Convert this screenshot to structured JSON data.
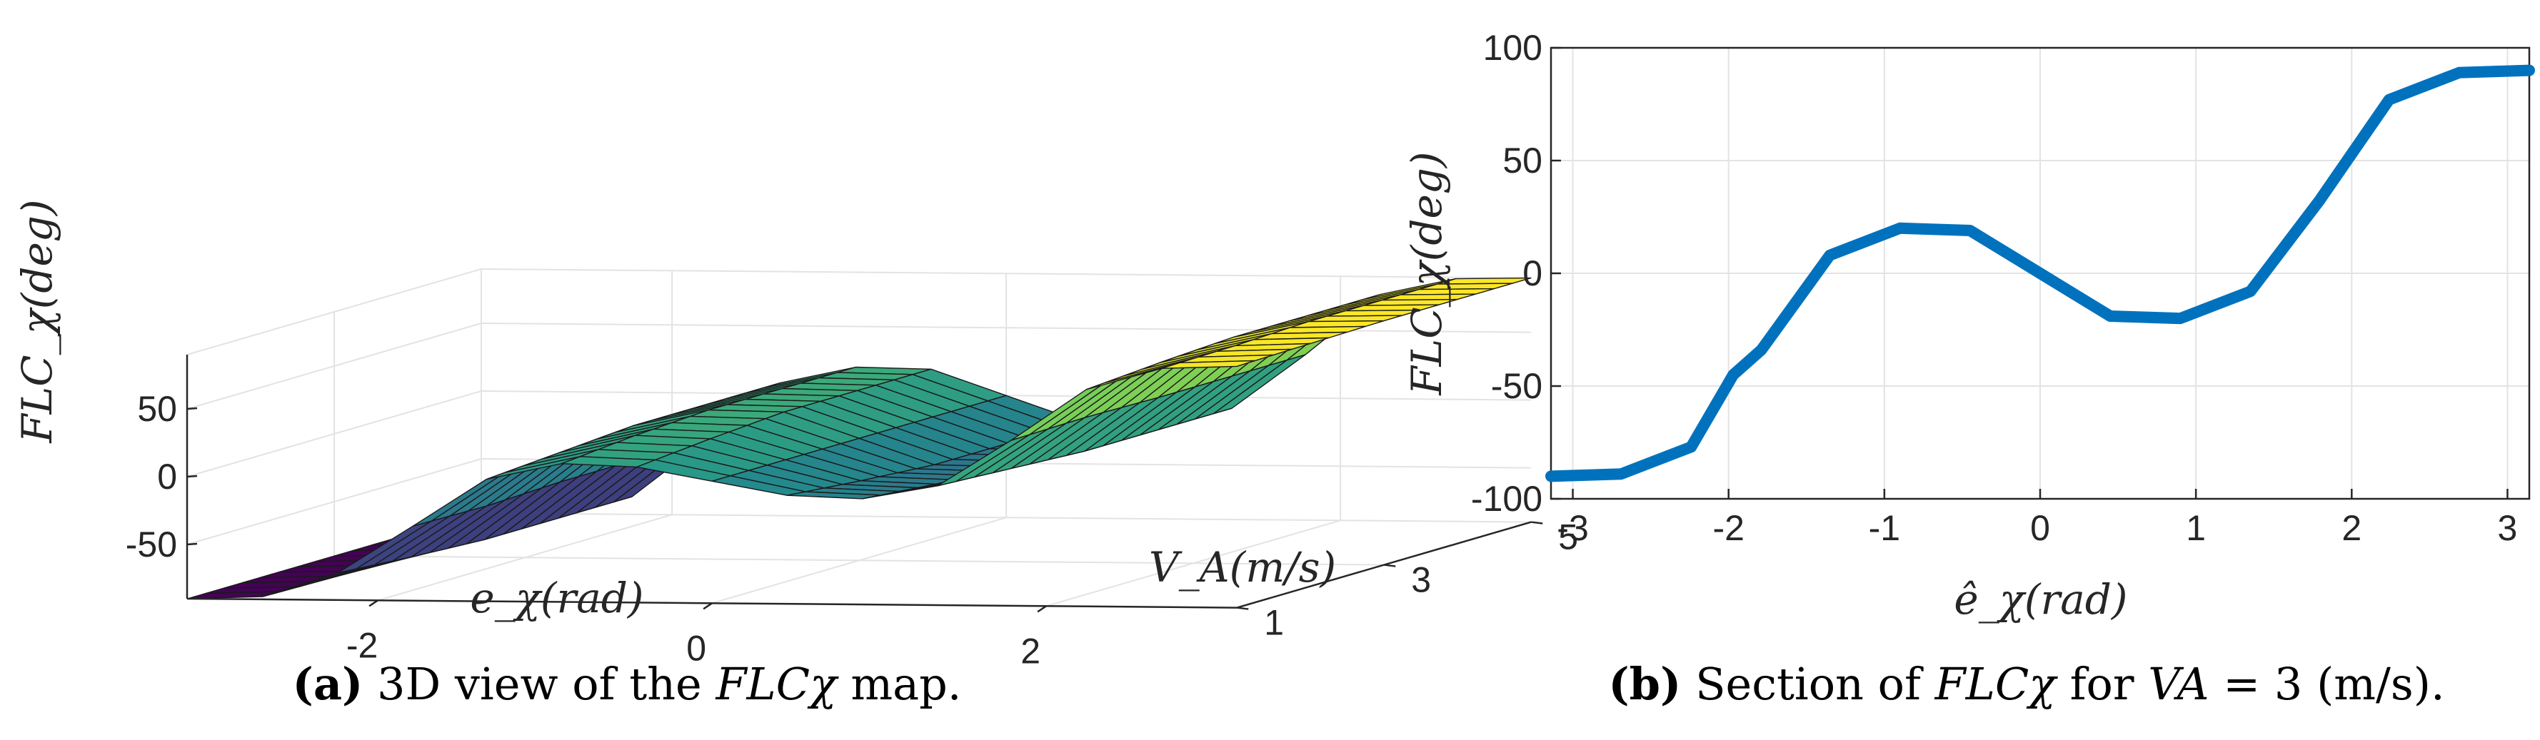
{
  "chart_data": [
    {
      "type": "surface",
      "panel": "a",
      "xlabel": "e_χ(rad)",
      "ylabel": "V_A(m/s)",
      "zlabel": "FLC_χ(deg)",
      "x_ticks": [
        "-2",
        "0",
        "2"
      ],
      "y_ticks": [
        "1",
        "3",
        "5"
      ],
      "z_ticks": [
        "50",
        "0",
        "-50"
      ],
      "x_range": [
        -3.14,
        3.14
      ],
      "y_range": [
        1,
        5
      ],
      "z_range": [
        -90,
        90
      ],
      "e_values": [
        -3.14,
        -2.69,
        -2.24,
        -1.79,
        -1.35,
        -0.9,
        -0.45,
        0,
        0.45,
        0.9,
        1.35,
        1.79,
        2.24,
        2.69,
        3.14
      ],
      "va_values": [
        1,
        2,
        3,
        4,
        5
      ],
      "z_values": [
        [
          -90,
          -88,
          -70,
          -35,
          0,
          12,
          10,
          0,
          -10,
          -12,
          -2,
          32,
          70,
          86,
          88
        ],
        [
          -90,
          -89,
          -74,
          -36,
          4,
          17,
          15,
          0,
          -15,
          -17,
          -5,
          33,
          74,
          87,
          89
        ],
        [
          -90,
          -89,
          -77,
          -34,
          8,
          20,
          19,
          0,
          -19,
          -20,
          -8,
          32,
          77,
          89,
          90
        ],
        [
          -90,
          -89,
          -77,
          -34,
          8,
          20,
          19,
          0,
          -19,
          -20,
          -8,
          32,
          77,
          89,
          90
        ],
        [
          -90,
          -89,
          -77,
          -34,
          8,
          20,
          19,
          0,
          -19,
          -20,
          -8,
          32,
          77,
          89,
          90
        ]
      ],
      "colormap": [
        "#440154",
        "#3b528b",
        "#21918c",
        "#5ec962",
        "#fde725"
      ]
    },
    {
      "type": "line",
      "panel": "b",
      "xlabel": "ê_χ(rad)",
      "ylabel": "FLC_χ(deg)",
      "x_ticks": [
        "-3",
        "-2",
        "-1",
        "0",
        "1",
        "2",
        "3"
      ],
      "y_ticks": [
        "100",
        "50",
        "0",
        "-50",
        "-100"
      ],
      "xlim": [
        -3.14,
        3.14
      ],
      "ylim": [
        -100,
        100
      ],
      "grid": true,
      "series": [
        {
          "name": "V_A = 3",
          "color": "#0072BD",
          "x": [
            -3.14,
            -2.69,
            -2.24,
            -1.97,
            -1.79,
            -1.35,
            -0.9,
            -0.45,
            0,
            0.45,
            0.9,
            1.35,
            1.79,
            2.24,
            2.69,
            3.14
          ],
          "y": [
            -90,
            -89,
            -77,
            -45,
            -34,
            8,
            20,
            19,
            0,
            -19,
            -20,
            -8,
            32,
            77,
            89,
            90
          ]
        }
      ]
    }
  ],
  "captions": {
    "a": {
      "label": "(a)",
      "text": " 3D view of the ",
      "math": "FLCχ",
      "tail": " map."
    },
    "b": {
      "label": "(b)",
      "text": " Section of ",
      "math": "FLCχ",
      "mid": " for ",
      "math2": "VA",
      "tail": " = 3 (m/s)."
    }
  }
}
